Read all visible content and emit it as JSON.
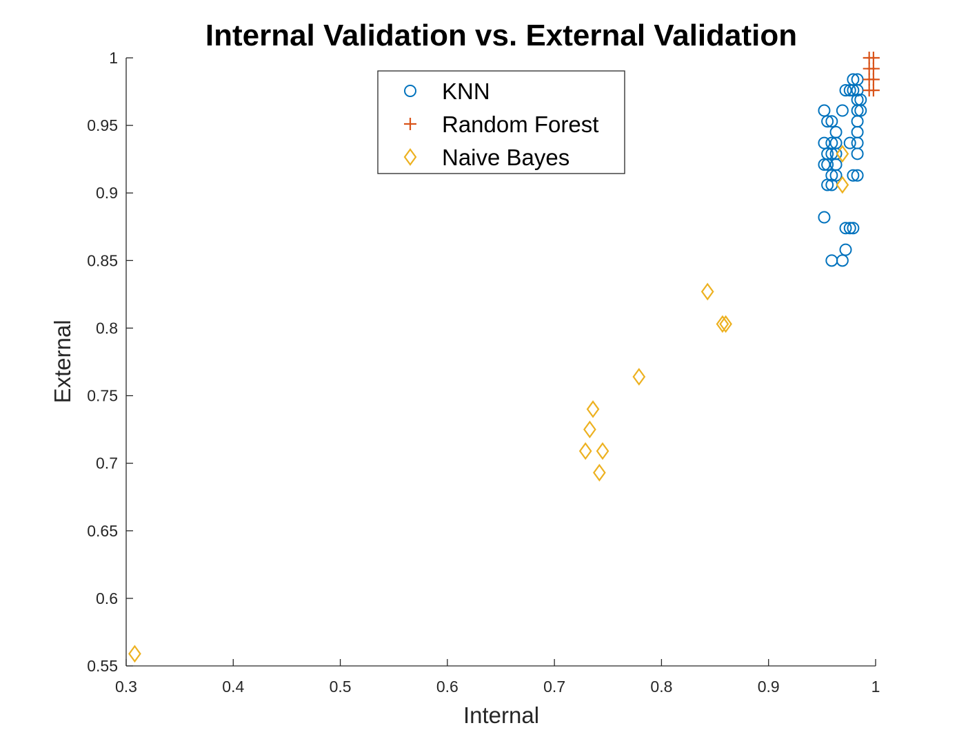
{
  "chart_data": {
    "type": "scatter",
    "title": "Internal Validation vs. External Validation",
    "xlabel": "Internal",
    "ylabel": "External",
    "xlim": [
      0.3,
      1
    ],
    "ylim": [
      0.55,
      1
    ],
    "xticks": [
      0.3,
      0.4,
      0.5,
      0.6,
      0.7,
      0.8,
      0.9,
      1
    ],
    "xtick_labels": [
      "0.3",
      "0.4",
      "0.5",
      "0.6",
      "0.7",
      "0.8",
      "0.9",
      "1"
    ],
    "yticks": [
      0.55,
      0.6,
      0.65,
      0.7,
      0.75,
      0.8,
      0.85,
      0.9,
      0.95,
      1
    ],
    "ytick_labels": [
      "0.55",
      "0.6",
      "0.65",
      "0.7",
      "0.75",
      "0.8",
      "0.85",
      "0.9",
      "0.95",
      "1"
    ],
    "grid": false,
    "legend_position": "top-center",
    "series": [
      {
        "name": "KNN",
        "marker": "circle",
        "color": "#0072BD",
        "points": [
          [
            0.952,
            0.961
          ],
          [
            0.969,
            0.961
          ],
          [
            0.983,
            0.961
          ],
          [
            0.986,
            0.961
          ],
          [
            0.955,
            0.953
          ],
          [
            0.959,
            0.953
          ],
          [
            0.983,
            0.953
          ],
          [
            0.963,
            0.945
          ],
          [
            0.983,
            0.945
          ],
          [
            0.952,
            0.937
          ],
          [
            0.959,
            0.937
          ],
          [
            0.963,
            0.937
          ],
          [
            0.976,
            0.937
          ],
          [
            0.983,
            0.937
          ],
          [
            0.955,
            0.929
          ],
          [
            0.959,
            0.929
          ],
          [
            0.963,
            0.929
          ],
          [
            0.983,
            0.929
          ],
          [
            0.952,
            0.921
          ],
          [
            0.955,
            0.921
          ],
          [
            0.963,
            0.921
          ],
          [
            0.959,
            0.913
          ],
          [
            0.963,
            0.913
          ],
          [
            0.979,
            0.913
          ],
          [
            0.983,
            0.913
          ],
          [
            0.955,
            0.906
          ],
          [
            0.959,
            0.906
          ],
          [
            0.952,
            0.882
          ],
          [
            0.972,
            0.874
          ],
          [
            0.976,
            0.874
          ],
          [
            0.979,
            0.874
          ],
          [
            0.972,
            0.858
          ],
          [
            0.959,
            0.85
          ],
          [
            0.969,
            0.85
          ],
          [
            0.979,
            0.984
          ],
          [
            0.983,
            0.984
          ],
          [
            0.972,
            0.976
          ],
          [
            0.976,
            0.976
          ],
          [
            0.979,
            0.976
          ],
          [
            0.983,
            0.976
          ],
          [
            0.983,
            0.969
          ],
          [
            0.986,
            0.969
          ]
        ]
      },
      {
        "name": "Random Forest",
        "marker": "plus",
        "color": "#D95319",
        "points": [
          [
            0.994,
            1.0
          ],
          [
            0.998,
            1.0
          ],
          [
            0.994,
            0.992
          ],
          [
            0.998,
            0.992
          ],
          [
            0.994,
            0.984
          ],
          [
            0.998,
            0.984
          ],
          [
            0.994,
            0.976
          ],
          [
            0.998,
            0.976
          ]
        ]
      },
      {
        "name": "Naive Bayes",
        "marker": "diamond",
        "color": "#EDB120",
        "points": [
          [
            0.308,
            0.559
          ],
          [
            0.729,
            0.709
          ],
          [
            0.733,
            0.725
          ],
          [
            0.736,
            0.74
          ],
          [
            0.742,
            0.693
          ],
          [
            0.745,
            0.709
          ],
          [
            0.779,
            0.764
          ],
          [
            0.843,
            0.827
          ],
          [
            0.857,
            0.803
          ],
          [
            0.86,
            0.803
          ],
          [
            0.969,
            0.906
          ],
          [
            0.969,
            0.929
          ]
        ]
      }
    ]
  }
}
